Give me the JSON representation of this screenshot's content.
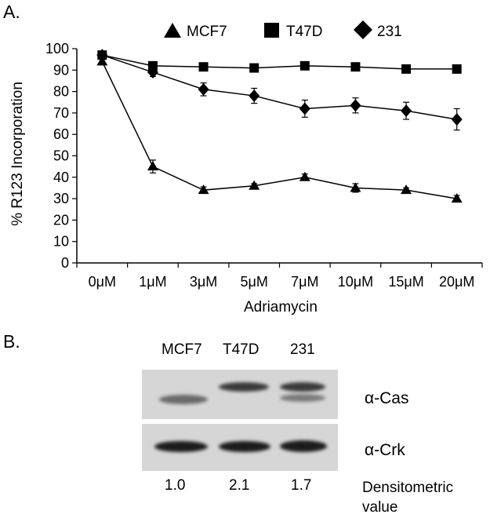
{
  "panel_a_label": "A.",
  "panel_b_label": "B.",
  "chart_data": {
    "type": "line",
    "title": "",
    "xlabel": "Adriamycin",
    "ylabel": "% R123 Incorporation",
    "categories": [
      "0μM",
      "1μM",
      "3μM",
      "5μM",
      "7μM",
      "10μM",
      "15μM",
      "20μM"
    ],
    "ylim": [
      0,
      100
    ],
    "yticks": [
      0,
      10,
      20,
      30,
      40,
      50,
      60,
      70,
      80,
      90,
      100
    ],
    "grid": false,
    "legend_position": "top",
    "series": [
      {
        "name": "MCF7",
        "marker": "triangle",
        "color": "#000000",
        "values": [
          94,
          45,
          34,
          36,
          40,
          35,
          34,
          30
        ],
        "errors": [
          1,
          3,
          1.5,
          1,
          1.5,
          2,
          1,
          1.5
        ]
      },
      {
        "name": "T47D",
        "marker": "square",
        "color": "#000000",
        "values": [
          97,
          92,
          91.5,
          91,
          92,
          91.5,
          90.5,
          90.5
        ],
        "errors": [
          1,
          1,
          1,
          1,
          1,
          1,
          1,
          1
        ]
      },
      {
        "name": "231",
        "marker": "diamond",
        "color": "#000000",
        "values": [
          97,
          89,
          81,
          78,
          72,
          73.5,
          71,
          67
        ],
        "errors": [
          1,
          2,
          3,
          3.5,
          4,
          3.5,
          4,
          5
        ]
      }
    ]
  },
  "blot": {
    "lanes": [
      "MCF7",
      "T47D",
      "231"
    ],
    "rows": [
      "α-Cas",
      "α-Crk"
    ],
    "densitometric_values": [
      "1.0",
      "2.1",
      "1.7"
    ],
    "densitometric_label": "Densitometric value"
  }
}
